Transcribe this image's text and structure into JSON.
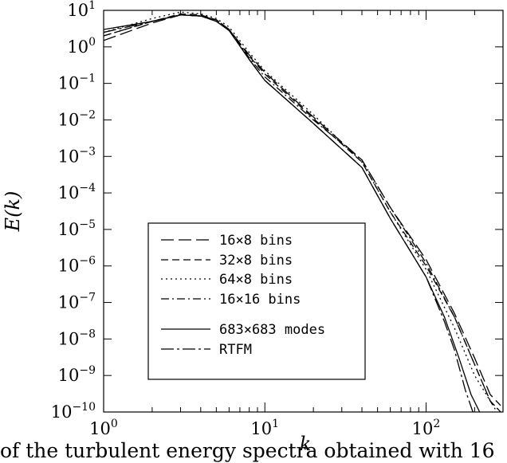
{
  "chart_data": {
    "type": "line",
    "xlabel": "k",
    "ylabel": "E(k)",
    "x_scale": "log",
    "y_scale": "log",
    "xlim": [
      1,
      300
    ],
    "ylim": [
      1e-10,
      10
    ],
    "x_ticks": [
      {
        "value": 1,
        "base": "10",
        "exp": "0"
      },
      {
        "value": 10,
        "base": "10",
        "exp": "1"
      },
      {
        "value": 100,
        "base": "10",
        "exp": "2"
      }
    ],
    "y_ticks": [
      {
        "value": 10,
        "base": "10",
        "exp": "1"
      },
      {
        "value": 1,
        "base": "10",
        "exp": "0"
      },
      {
        "value": 0.1,
        "base": "10",
        "exp": "−1"
      },
      {
        "value": 0.01,
        "base": "10",
        "exp": "−2"
      },
      {
        "value": 0.001,
        "base": "10",
        "exp": "−3"
      },
      {
        "value": 0.0001,
        "base": "10",
        "exp": "−4"
      },
      {
        "value": 1e-05,
        "base": "10",
        "exp": "−5"
      },
      {
        "value": 1e-06,
        "base": "10",
        "exp": "−6"
      },
      {
        "value": 1e-07,
        "base": "10",
        "exp": "−7"
      },
      {
        "value": 1e-08,
        "base": "10",
        "exp": "−8"
      },
      {
        "value": 1e-09,
        "base": "10",
        "exp": "−9"
      },
      {
        "value": 1e-10,
        "base": "10",
        "exp": "−10"
      }
    ],
    "grid": false,
    "legend_position": "bottom-left",
    "series": [
      {
        "name": "16×8 bins",
        "dash": "long-dash",
        "x": [
          1,
          2,
          3,
          4,
          5,
          6,
          8,
          10,
          20,
          40,
          60,
          100,
          150,
          200,
          250,
          290
        ],
        "y": [
          1.5,
          4.5,
          7.5,
          7,
          5.5,
          3,
          0.6,
          0.2,
          0.012,
          0.0008,
          4e-05,
          1.5e-06,
          5e-08,
          3e-09,
          3e-10,
          1.5e-10
        ]
      },
      {
        "name": "32×8 bins",
        "dash": "dash",
        "x": [
          1,
          2,
          3,
          4,
          5,
          6,
          8,
          10,
          20,
          40,
          60,
          100,
          150,
          200,
          250,
          290
        ],
        "y": [
          2,
          5,
          8,
          7.5,
          5.5,
          3,
          0.55,
          0.18,
          0.011,
          0.0007,
          3e-05,
          1e-06,
          4e-08,
          2e-09,
          2e-10,
          1e-10
        ]
      },
      {
        "name": "64×8 bins",
        "dash": "dot",
        "x": [
          1,
          2,
          3,
          4,
          5,
          6,
          8,
          10,
          20,
          40,
          60,
          100,
          150,
          200,
          250,
          290
        ],
        "y": [
          2.5,
          6,
          9,
          8,
          6,
          3.5,
          0.7,
          0.22,
          0.014,
          0.0007,
          3e-05,
          8e-07,
          2e-08,
          1e-09,
          2e-10,
          1e-10
        ]
      },
      {
        "name": "16×16 bins",
        "dash": "dash-dot",
        "x": [
          1,
          2,
          3,
          4,
          5,
          6,
          8,
          10,
          20,
          40,
          60,
          100,
          150,
          200,
          250,
          275
        ],
        "y": [
          2,
          5,
          7.5,
          7,
          5.5,
          3,
          0.5,
          0.15,
          0.01,
          0.0008,
          4e-05,
          1.2e-06,
          4e-08,
          2e-09,
          2e-10,
          1e-10
        ]
      },
      {
        "name": "683×683 modes",
        "dash": "solid",
        "x": [
          1,
          2,
          3,
          4,
          5,
          6,
          8,
          10,
          20,
          40,
          60,
          100,
          130,
          160,
          190,
          215
        ],
        "y": [
          3,
          5,
          7.5,
          7,
          5,
          2.8,
          0.45,
          0.12,
          0.008,
          0.0005,
          2e-05,
          5e-07,
          4e-08,
          3e-09,
          3e-10,
          1e-10
        ]
      },
      {
        "name": "RTFM",
        "dash": "dash-dot-long",
        "x": [
          1,
          2,
          3,
          4,
          5,
          6,
          8,
          10,
          20,
          40,
          60,
          100,
          130,
          150,
          175,
          195
        ],
        "y": [
          2.5,
          5,
          7.5,
          7,
          5,
          2.8,
          0.45,
          0.12,
          0.008,
          0.0005,
          2e-05,
          5e-07,
          3e-08,
          5e-09,
          4e-10,
          1e-10
        ]
      }
    ]
  },
  "caption": "of the turbulent energy spectra obtained with 16"
}
